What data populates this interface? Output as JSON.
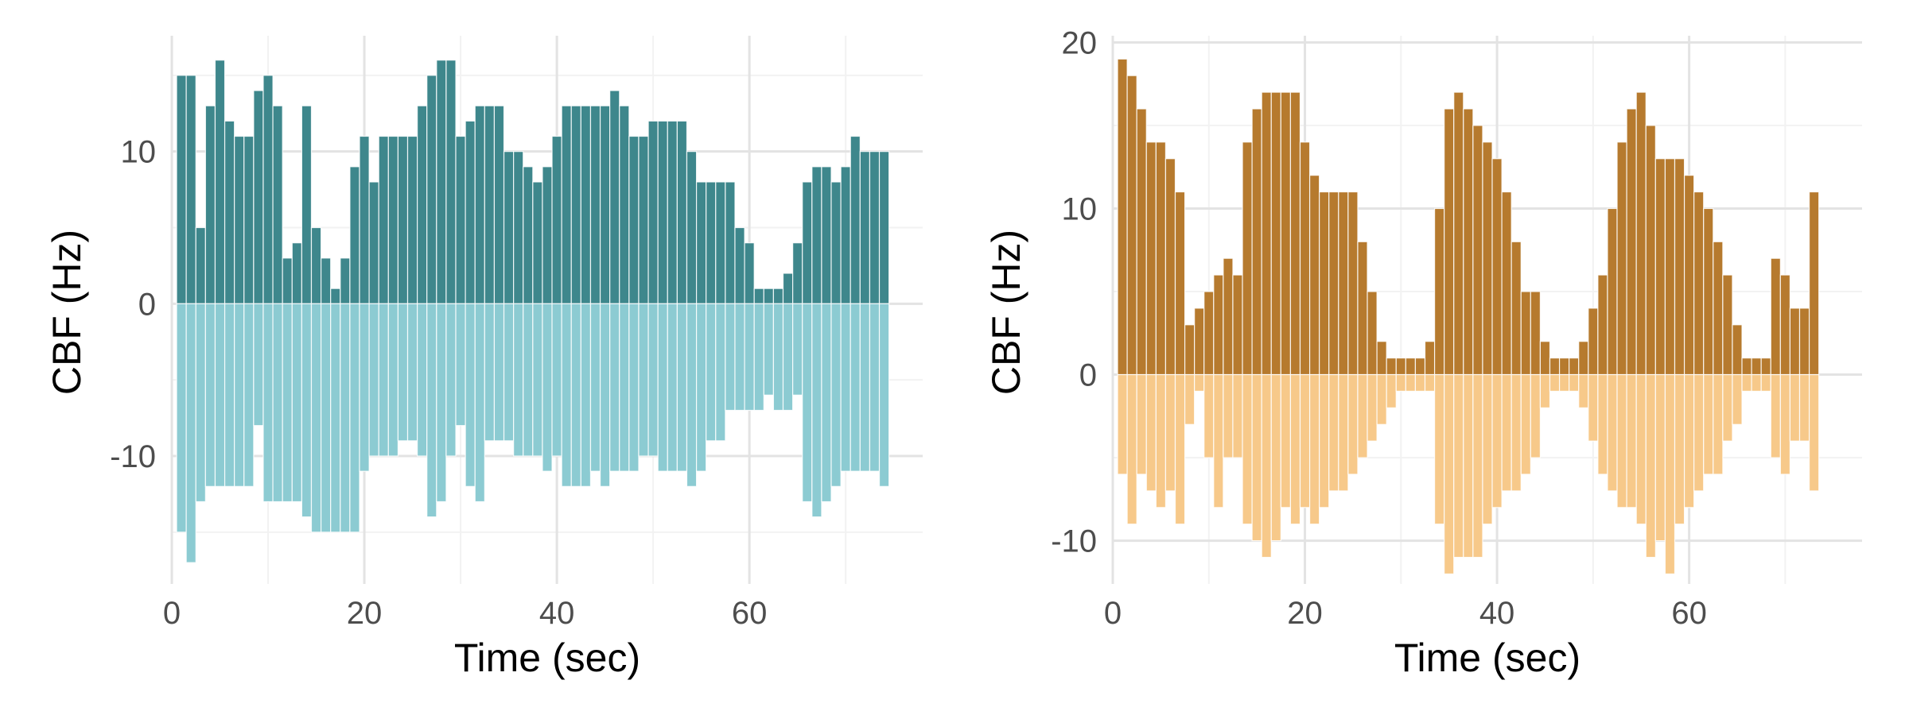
{
  "chart_data": [
    {
      "type": "bar",
      "title": "",
      "xlabel": "Time (sec)",
      "ylabel": "CBF (Hz)",
      "xlim": [
        0,
        78
      ],
      "ylim": [
        -18.4,
        17.6
      ],
      "xticks": [
        0,
        20,
        40,
        60
      ],
      "yticks": [
        -10,
        0,
        10
      ],
      "grid": true,
      "legend": "none",
      "colors": {
        "positive": "#3e878c",
        "negative": "#8ccbd2"
      },
      "x": [
        1,
        2,
        3,
        4,
        5,
        6,
        7,
        8,
        9,
        10,
        11,
        12,
        13,
        14,
        15,
        16,
        17,
        18,
        19,
        20,
        21,
        22,
        23,
        24,
        25,
        26,
        27,
        28,
        29,
        30,
        31,
        32,
        33,
        34,
        35,
        36,
        37,
        38,
        39,
        40,
        41,
        42,
        43,
        44,
        45,
        46,
        47,
        48,
        49,
        50,
        51,
        52,
        53,
        54,
        55,
        56,
        57,
        58,
        59,
        60,
        61,
        62,
        63,
        64,
        65,
        66,
        67,
        68,
        69,
        70,
        71,
        72,
        73,
        74
      ],
      "series": [
        {
          "values": [
            15,
            15,
            5,
            13,
            16,
            12,
            11,
            11,
            14,
            15,
            13,
            3,
            4,
            13,
            5,
            3,
            1,
            3,
            9,
            11,
            8,
            11,
            11,
            11,
            11,
            13,
            15,
            16,
            16,
            11,
            12,
            13,
            13,
            13,
            10,
            10,
            9,
            8,
            9,
            11,
            13,
            13,
            13,
            13,
            13,
            14,
            13,
            11,
            11,
            12,
            12,
            12,
            12,
            10,
            8,
            8,
            8,
            8,
            5,
            4,
            1,
            1,
            1,
            2,
            4,
            8,
            9,
            9,
            8,
            9,
            11,
            10,
            10,
            10
          ]
        },
        {
          "values": [
            -15,
            -17,
            -13,
            -12,
            -12,
            -12,
            -12,
            -12,
            -8,
            -13,
            -13,
            -13,
            -13,
            -14,
            -15,
            -15,
            -15,
            -15,
            -15,
            -11,
            -10,
            -10,
            -10,
            -9,
            -9,
            -10,
            -14,
            -13,
            -10,
            -8,
            -12,
            -13,
            -9,
            -9,
            -9,
            -10,
            -10,
            -10,
            -11,
            -10,
            -12,
            -12,
            -12,
            -11,
            -12,
            -11,
            -11,
            -11,
            -10,
            -10,
            -11,
            -11,
            -11,
            -12,
            -11,
            -9,
            -9,
            -7,
            -7,
            -7,
            -7,
            -6,
            -7,
            -7,
            -6,
            -13,
            -14,
            -13,
            -12,
            -11,
            -11,
            -11,
            -11,
            -12
          ]
        }
      ]
    },
    {
      "type": "bar",
      "title": "",
      "xlabel": "Time (sec)",
      "ylabel": "CBF (Hz)",
      "xlim": [
        0,
        78
      ],
      "ylim": [
        -12.6,
        20.4
      ],
      "xticks": [
        0,
        20,
        40,
        60
      ],
      "yticks": [
        -10,
        0,
        10,
        20
      ],
      "grid": true,
      "legend": "none",
      "colors": {
        "positive": "#b67a2e",
        "negative": "#f7c98a"
      },
      "x": [
        1,
        2,
        3,
        4,
        5,
        6,
        7,
        8,
        9,
        10,
        11,
        12,
        13,
        14,
        15,
        16,
        17,
        18,
        19,
        20,
        21,
        22,
        23,
        24,
        25,
        26,
        27,
        28,
        29,
        30,
        31,
        32,
        33,
        34,
        35,
        36,
        37,
        38,
        39,
        40,
        41,
        42,
        43,
        44,
        45,
        46,
        47,
        48,
        49,
        50,
        51,
        52,
        53,
        54,
        55,
        56,
        57,
        58,
        59,
        60,
        61,
        62,
        63,
        64,
        65,
        66,
        67,
        68,
        69,
        70,
        71,
        72,
        73,
        74
      ],
      "series": [
        {
          "values": [
            19,
            18,
            16,
            14,
            14,
            13,
            11,
            3,
            4,
            5,
            6,
            7,
            6,
            14,
            16,
            17,
            17,
            17,
            17,
            14,
            12,
            11,
            11,
            11,
            11,
            8,
            5,
            2,
            1,
            1,
            1,
            1,
            2,
            10,
            16,
            17,
            16,
            15,
            14,
            13,
            11,
            8,
            5,
            5,
            2,
            1,
            1,
            1,
            2,
            4,
            6,
            10,
            14,
            16,
            17,
            15,
            13,
            13,
            13,
            12,
            11,
            10,
            8,
            6,
            3,
            1,
            1,
            1,
            7,
            6,
            4,
            4,
            11,
            0
          ]
        },
        {
          "values": [
            -6,
            -9,
            -6,
            -7,
            -8,
            -7,
            -9,
            -3,
            -1,
            -5,
            -8,
            -5,
            -5,
            -9,
            -10,
            -11,
            -10,
            -8,
            -9,
            -8,
            -9,
            -8,
            -7,
            -7,
            -6,
            -5,
            -4,
            -3,
            -2,
            -1,
            -1,
            -1,
            -1,
            -9,
            -12,
            -11,
            -11,
            -11,
            -9,
            -8,
            -7,
            -7,
            -6,
            -5,
            -2,
            -1,
            -1,
            -1,
            -2,
            -4,
            -6,
            -7,
            -8,
            -8,
            -9,
            -11,
            -10,
            -12,
            -9,
            -8,
            -7,
            -6,
            -6,
            -4,
            -3,
            -1,
            -1,
            -1,
            -5,
            -6,
            -4,
            -4,
            -7,
            0
          ]
        }
      ]
    }
  ]
}
